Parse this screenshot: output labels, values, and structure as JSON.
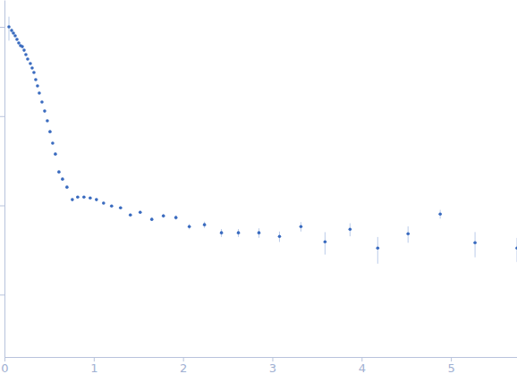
{
  "chart_data": {
    "type": "scatter",
    "color": "#3a6bbf",
    "marker": "circle",
    "log": "y",
    "tick_labels": "x",
    "grid": false,
    "xlim": [
      0,
      5.74
    ],
    "xticks": [
      0,
      1,
      2,
      3,
      4,
      5
    ],
    "ylim": [
      0.0002,
      2
    ],
    "yticks": [
      0.001,
      0.01,
      0.1,
      1
    ],
    "x": [
      0.05,
      0.08,
      0.1,
      0.12,
      0.14,
      0.16,
      0.18,
      0.2,
      0.22,
      0.24,
      0.26,
      0.29,
      0.31,
      0.33,
      0.35,
      0.37,
      0.39,
      0.42,
      0.45,
      0.48,
      0.51,
      0.54,
      0.57,
      0.61,
      0.65,
      0.7,
      0.76,
      0.82,
      0.89,
      0.96,
      1.03,
      1.11,
      1.2,
      1.3,
      1.41,
      1.52,
      1.65,
      1.78,
      1.92,
      2.07,
      2.24,
      2.43,
      2.62,
      2.85,
      3.08,
      3.32,
      3.59,
      3.87,
      4.18,
      4.52,
      4.88,
      5.27,
      5.74
    ],
    "values": [
      1.0,
      0.912,
      0.851,
      0.794,
      0.724,
      0.66,
      0.616,
      0.601,
      0.548,
      0.489,
      0.436,
      0.388,
      0.346,
      0.308,
      0.256,
      0.218,
      0.181,
      0.144,
      0.114,
      0.0885,
      0.067,
      0.0497,
      0.0376,
      0.0237,
      0.0197,
      0.016,
      0.0116,
      0.0124,
      0.0124,
      0.0121,
      0.0116,
      0.0106,
      0.00985,
      0.0094,
      0.00782,
      0.00838,
      0.00697,
      0.00764,
      0.0073,
      0.00579,
      0.00607,
      0.00493,
      0.00493,
      0.00493,
      0.00449,
      0.00579,
      0.00391,
      0.0054,
      0.00332,
      0.00481,
      0.008,
      0.00382,
      0.00332
    ],
    "errors": [
      0.3,
      0.05,
      0.02,
      0.015,
      0.01,
      0.008,
      0.007,
      0.006,
      0.005,
      0.005,
      0.004,
      0.004,
      0.003,
      0.003,
      0.003,
      0.002,
      0.002,
      0.002,
      0.0015,
      0.0012,
      0.001,
      0.0008,
      0.0006,
      0.0004,
      0.0003,
      0.0003,
      0.0003,
      0.0003,
      0.0003,
      0.0003,
      0.0003,
      0.0003,
      0.0003,
      0.0003,
      0.0003,
      0.0003,
      0.0003,
      0.0004,
      0.0004,
      0.0004,
      0.0005,
      0.0005,
      0.0005,
      0.0006,
      0.0006,
      0.0007,
      0.0011,
      0.0009,
      0.0011,
      0.001,
      0.0009,
      0.0012,
      0.001
    ]
  }
}
